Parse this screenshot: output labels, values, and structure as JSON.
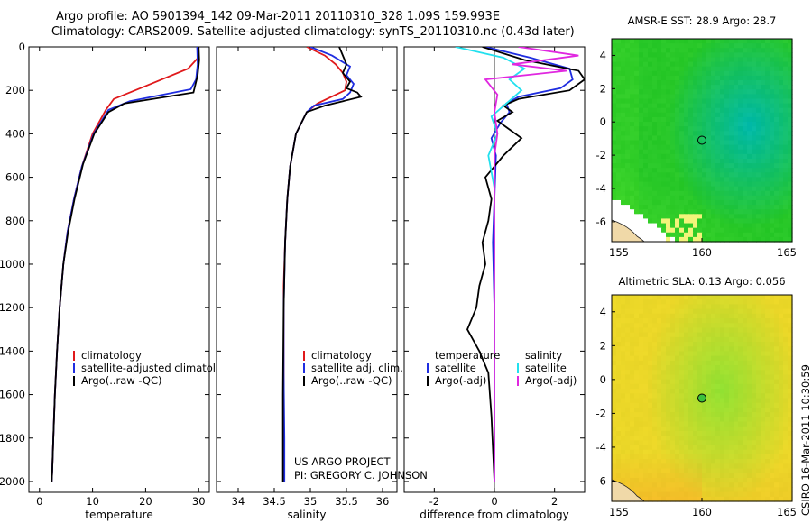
{
  "header": {
    "line1": "Argo profile: AO 5901394_142 09-Mar-2011 20110310_328 1.09S 159.993E",
    "line2": "Climatology: CARS2009. Satellite-adjusted climatology: synTS_20110310.nc (0.43d later)"
  },
  "colors": {
    "climatology": "#e0191b",
    "satellite": "#1f2de0",
    "argo": "#000000",
    "satellite_salinity": "#22e0ee",
    "argo_salinity": "#e028e0"
  },
  "credits": {
    "line1": "US ARGO PROJECT",
    "line2": "PI: GREGORY C. JOHNSON",
    "side": "CSIRO 16-Mar-2011 10:30:59"
  },
  "chart_data": [
    {
      "type": "line",
      "xlabel": "temperature",
      "ylabel": "",
      "xlim": [
        -2,
        32
      ],
      "ylim": [
        2050,
        0
      ],
      "xticks": [
        0,
        10,
        20,
        30
      ],
      "yticks": [
        0,
        200,
        400,
        600,
        800,
        1000,
        1200,
        1400,
        1600,
        1800,
        2000
      ],
      "legend": [
        "climatology",
        "satellite-adjusted climatology",
        "Argo(..raw -QC)"
      ],
      "series": [
        {
          "name": "climatology",
          "color": "climatology",
          "x": [
            30,
            29.9,
            28,
            20,
            14,
            12.5,
            10,
            8,
            6.5,
            5.3,
            4.5,
            3.8,
            3.3,
            2.9,
            2.6,
            2.4,
            2.3
          ],
          "y": [
            0,
            50,
            100,
            180,
            240,
            290,
            400,
            550,
            700,
            850,
            1000,
            1200,
            1400,
            1600,
            1800,
            1950,
            2000
          ]
        },
        {
          "name": "satellite-adjusted climatology",
          "color": "satellite",
          "x": [
            29.7,
            29.8,
            29.5,
            28.5,
            17,
            13,
            10.2,
            8,
            6.5,
            5.3,
            4.5,
            3.8,
            3.3,
            2.9,
            2.6,
            2.4,
            2.3
          ],
          "y": [
            0,
            80,
            150,
            195,
            250,
            290,
            400,
            550,
            700,
            850,
            1000,
            1200,
            1400,
            1600,
            1800,
            1950,
            2000
          ]
        },
        {
          "name": "Argo(..raw -QC)",
          "color": "argo",
          "x": [
            30,
            30.1,
            29.8,
            29,
            16,
            13,
            10.3,
            8.2,
            6.6,
            5.4,
            4.5,
            3.8,
            3.3,
            2.9,
            2.6,
            2.4,
            2.3
          ],
          "y": [
            0,
            60,
            130,
            210,
            260,
            300,
            400,
            540,
            700,
            850,
            1000,
            1200,
            1400,
            1600,
            1800,
            1950,
            2000
          ]
        }
      ]
    },
    {
      "type": "line",
      "xlabel": "salinity",
      "ylabel": "",
      "xlim": [
        33.7,
        36.2
      ],
      "ylim": [
        2050,
        0
      ],
      "xticks": [
        34,
        34.5,
        35,
        35.5,
        36
      ],
      "legend": [
        "climatology",
        "satellite adj. clim.",
        "Argo(..raw -QC)"
      ],
      "series": [
        {
          "name": "climatology",
          "color": "climatology",
          "x": [
            34.95,
            35.2,
            35.35,
            35.45,
            35.5,
            35.48,
            35.1,
            34.95,
            34.8,
            34.72,
            34.68,
            34.65,
            34.63,
            34.63,
            34.63,
            34.63,
            34.63
          ],
          "y": [
            0,
            40,
            80,
            120,
            160,
            200,
            260,
            300,
            400,
            550,
            700,
            900,
            1100,
            1400,
            1700,
            1900,
            2000
          ]
        },
        {
          "name": "satellite adj. clim.",
          "color": "satellite",
          "x": [
            35.0,
            35.3,
            35.55,
            35.5,
            35.6,
            35.55,
            35.45,
            35.05,
            34.95,
            34.8,
            34.72,
            34.68,
            34.65,
            34.63,
            34.63,
            34.64,
            34.64
          ],
          "y": [
            0,
            40,
            90,
            130,
            170,
            210,
            240,
            270,
            300,
            400,
            550,
            700,
            900,
            1200,
            1500,
            1800,
            2000
          ]
        },
        {
          "name": "Argo(..raw -QC)",
          "color": "argo",
          "x": [
            35.4,
            35.45,
            35.5,
            35.45,
            35.55,
            35.5,
            35.65,
            35.7,
            35.2,
            34.95,
            34.8,
            34.72,
            34.68,
            34.65,
            34.63,
            34.62,
            34.62
          ],
          "y": [
            0,
            40,
            80,
            120,
            160,
            190,
            210,
            230,
            270,
            300,
            400,
            550,
            700,
            900,
            1200,
            1600,
            2000
          ]
        }
      ]
    },
    {
      "type": "line",
      "xlabel": "difference from climatology",
      "ylabel": "",
      "xlim": [
        -3,
        3
      ],
      "ylim": [
        2050,
        0
      ],
      "xticks": [
        -2,
        0,
        2
      ],
      "legend": [
        "temperature",
        "satellite",
        "Argo(-adj)",
        "salinity",
        "satellite",
        "Argo(-adj)"
      ],
      "series": [
        {
          "name": "temperature satellite",
          "color": "satellite",
          "x": [
            -0.3,
            1.2,
            2.5,
            2.6,
            2.2,
            0.8,
            0.4,
            0.5,
            0.2,
            -0.1,
            0.05,
            0.0,
            -0.05,
            0.0,
            0.0,
            0.0,
            0.0
          ],
          "y": [
            0,
            50,
            100,
            150,
            190,
            230,
            260,
            300,
            350,
            420,
            500,
            700,
            900,
            1200,
            1500,
            1800,
            2000
          ]
        },
        {
          "name": "temperature Argo(-adj)",
          "color": "argo",
          "x": [
            -0.4,
            1.0,
            2.8,
            3.0,
            2.5,
            0.8,
            0.3,
            0.6,
            0.1,
            0.9,
            0.3,
            -0.3,
            -0.1,
            -0.2,
            -0.4,
            -0.3,
            -0.5,
            -0.6,
            -0.9,
            -0.5,
            -0.2,
            -0.1,
            0.0
          ],
          "y": [
            0,
            60,
            110,
            150,
            200,
            240,
            270,
            300,
            340,
            420,
            500,
            600,
            700,
            800,
            900,
            1000,
            1100,
            1200,
            1300,
            1400,
            1500,
            1700,
            2000
          ]
        },
        {
          "name": "salinity satellite",
          "color": "satellite_salinity",
          "x": [
            -1.3,
            0.3,
            1.0,
            0.5,
            0.9,
            0.4,
            -0.1,
            0.1,
            -0.2,
            0.0,
            0.0,
            0.0,
            0.0,
            0.0,
            0.0,
            0.0
          ],
          "y": [
            0,
            50,
            100,
            150,
            200,
            260,
            320,
            400,
            500,
            650,
            800,
            1000,
            1300,
            1600,
            1800,
            2000
          ]
        },
        {
          "name": "salinity Argo(-adj)",
          "color": "argo_salinity",
          "x": [
            0.8,
            2.8,
            0.6,
            2.4,
            -0.3,
            0.1,
            0.0,
            0.1,
            0.0,
            0.0,
            0.0,
            0.0,
            0.0,
            0.0,
            0.0
          ],
          "y": [
            0,
            40,
            80,
            110,
            150,
            220,
            300,
            400,
            500,
            700,
            900,
            1200,
            1500,
            1800,
            2000
          ]
        }
      ]
    },
    {
      "type": "heatmap",
      "title": "AMSR-E SST: 28.9 Argo: 28.7",
      "xlim": [
        155,
        165
      ],
      "ylim": [
        -7.2,
        5
      ],
      "xticks": [
        155,
        160,
        165
      ],
      "yticks": [
        -6,
        -4,
        -2,
        0,
        2,
        4
      ],
      "marker": {
        "x": 160,
        "y": -1.1
      }
    },
    {
      "type": "heatmap",
      "title": "Altimetric SLA: 0.13 Argo: 0.056",
      "xlim": [
        155,
        165
      ],
      "ylim": [
        -7.2,
        5
      ],
      "xticks": [
        155,
        160,
        165
      ],
      "yticks": [
        -6,
        -4,
        -2,
        0,
        2,
        4
      ],
      "marker": {
        "x": 160,
        "y": -1.1
      }
    }
  ]
}
